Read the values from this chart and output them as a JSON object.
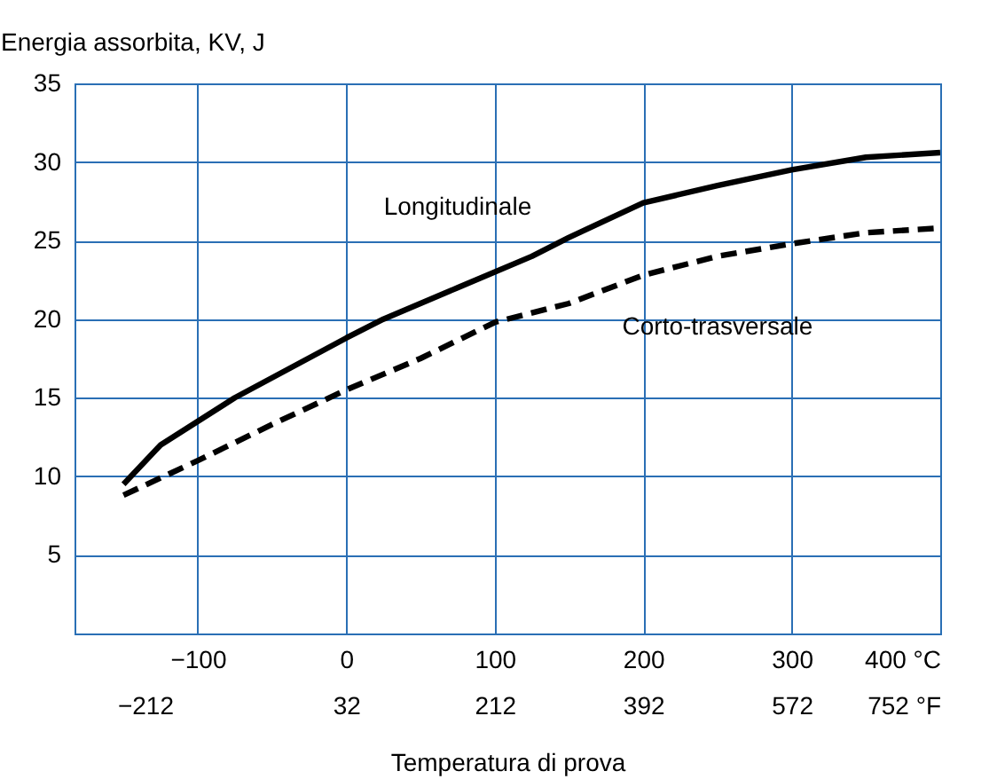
{
  "chart_data": {
    "type": "line",
    "xlabel": "Temperatura di prova",
    "ylabel": "Energia assorbita, KV, J",
    "xlim": [
      -183,
      400
    ],
    "xticks": [
      {
        "value": -100,
        "label": "−100"
      },
      0,
      100,
      200,
      300,
      {
        "value": 400,
        "label": "400 °C"
      }
    ],
    "x2lim": [
      -297.4,
      752
    ],
    "x2ticks": [
      {
        "value": -212,
        "label": "−212"
      },
      32,
      212,
      392,
      572,
      {
        "value": 752,
        "label": "752 °F"
      }
    ],
    "ylim": [
      0,
      35
    ],
    "yticks": [
      5,
      10,
      15,
      20,
      25,
      30,
      35
    ],
    "grid": true,
    "series": [
      {
        "name": "Longitudinale",
        "color": "#000000",
        "line_style": "solid",
        "x": [
          -150,
          -125,
          -75,
          0,
          25,
          75,
          125,
          150,
          200,
          250,
          300,
          350,
          400
        ],
        "values": [
          9.5,
          12,
          15,
          18.8,
          20,
          22,
          24,
          25.2,
          27.4,
          28.5,
          29.5,
          30.3,
          30.6
        ]
      },
      {
        "name": "Corto-trasversale",
        "color": "#000000",
        "line_style": "dashed",
        "x": [
          -150,
          -100,
          -50,
          0,
          50,
          100,
          150,
          200,
          250,
          300,
          350,
          400
        ],
        "values": [
          8.8,
          11,
          13.3,
          15.5,
          17.5,
          19.8,
          21,
          22.8,
          24,
          24.8,
          25.5,
          25.8
        ]
      }
    ]
  }
}
